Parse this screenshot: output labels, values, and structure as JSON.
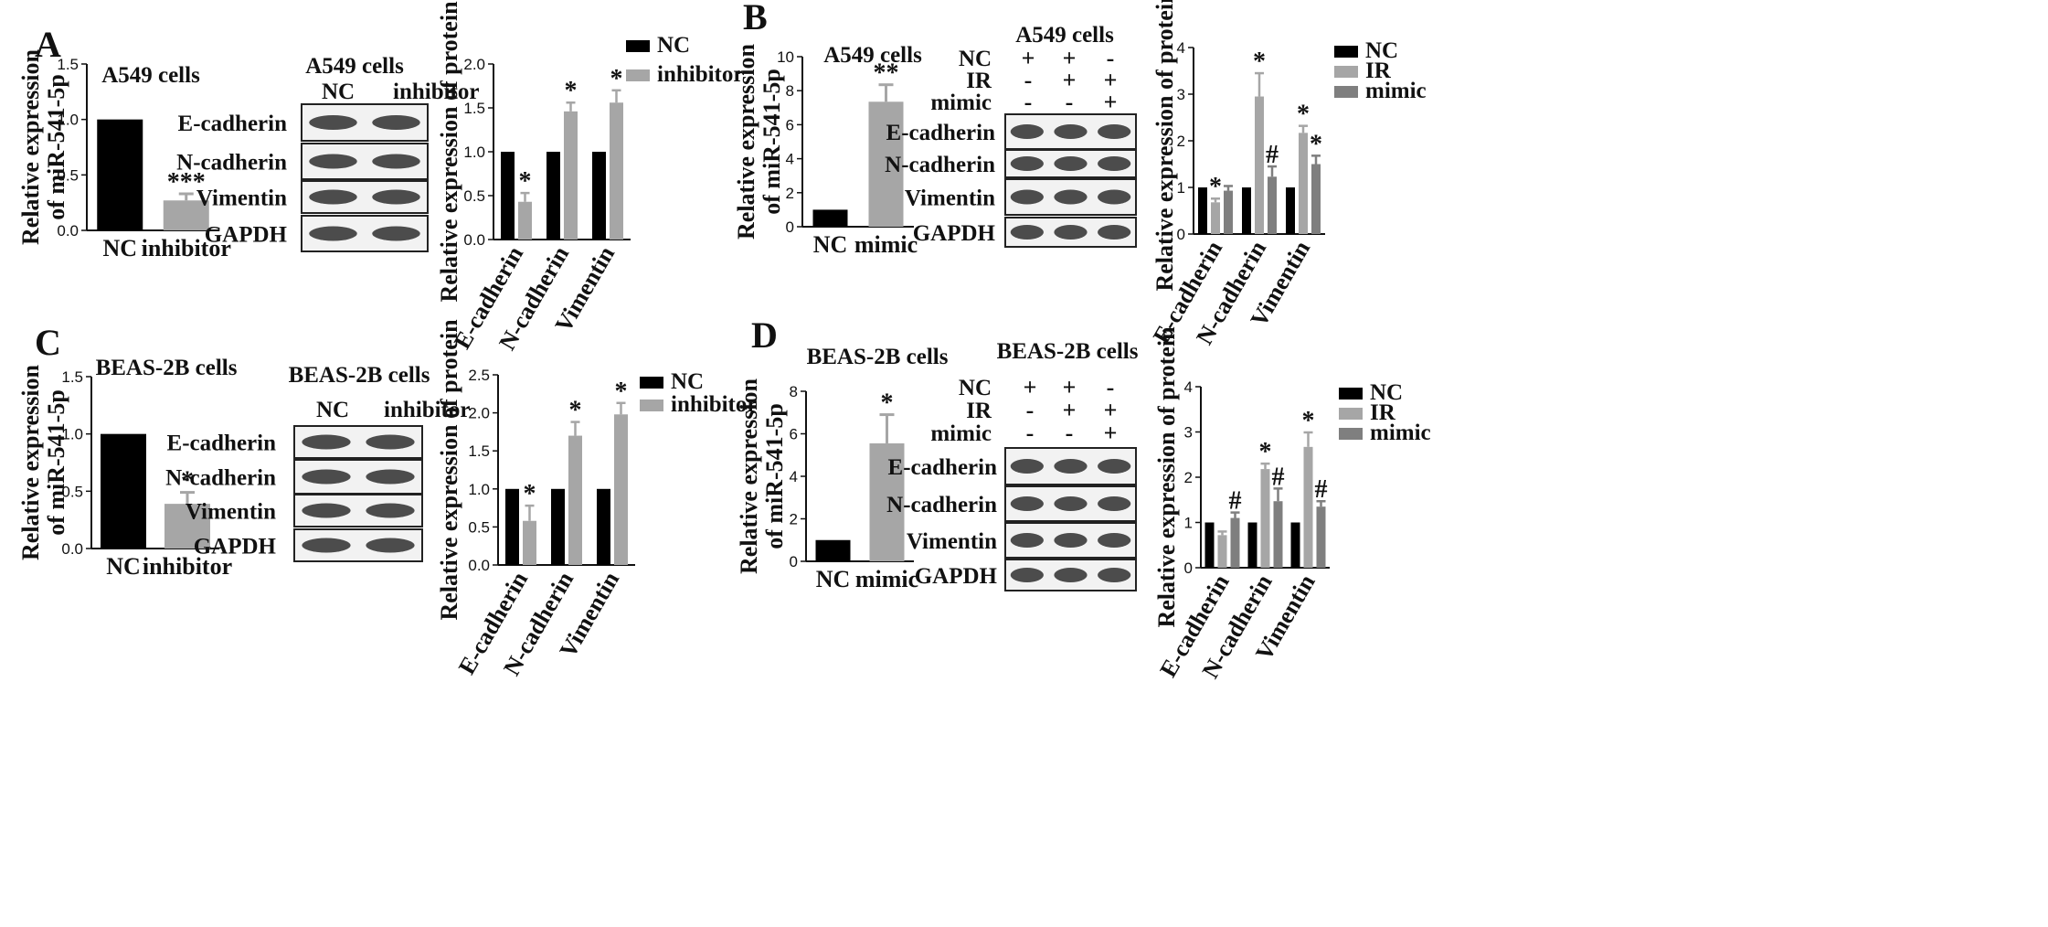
{
  "panels": [
    {
      "letter": "A",
      "mirna": {
        "title": "A549 cells",
        "ylabel": [
          "Relative expression",
          "of miR-541-5p"
        ],
        "categories": [
          "NC",
          "inhibitor"
        ],
        "values": [
          1.0,
          0.27
        ],
        "errors": [
          0,
          0.06
        ],
        "sig": [
          "",
          "***"
        ],
        "ylim": [
          0,
          1.5
        ],
        "ticks": [
          "0.0",
          "0.5",
          "1.0",
          "1.5"
        ]
      },
      "blot": {
        "title": "A549 cells",
        "lane_header_style": "labels",
        "lanes": [
          "NC",
          "inhibitor"
        ],
        "proteins": [
          "E-cadherin",
          "N-cadherin",
          "Vimentin",
          "GAPDH"
        ]
      },
      "protein": {
        "ylabel": "Relative expression of protein",
        "categories": [
          "E-cadherin",
          "N-cadherin",
          "Vimentin"
        ],
        "series": [
          {
            "name": "NC",
            "values": [
              1,
              1,
              1
            ],
            "errors": [
              0,
              0,
              0
            ],
            "sig": [
              "",
              "",
              ""
            ]
          },
          {
            "name": "inhibitor",
            "values": [
              0.43,
              1.46,
              1.56
            ],
            "errors": [
              0.1,
              0.1,
              0.14
            ],
            "sig": [
              "*",
              "*",
              "*"
            ]
          }
        ],
        "ylim": [
          0,
          2.0
        ],
        "ticks": [
          "0.0",
          "0.5",
          "1.0",
          "1.5",
          "2.0"
        ]
      }
    },
    {
      "letter": "B",
      "mirna": {
        "title": "A549 cells",
        "ylabel": [
          "Relative expression",
          "of miR-541-5p"
        ],
        "categories": [
          "NC",
          "mimic"
        ],
        "values": [
          1.0,
          7.35
        ],
        "errors": [
          0,
          1.0
        ],
        "sig": [
          "",
          "**"
        ],
        "ylim": [
          0,
          10
        ],
        "ticks": [
          "0",
          "2",
          "4",
          "6",
          "8",
          "10"
        ]
      },
      "blot": {
        "title": "A549 cells",
        "lane_header_style": "conditions",
        "conditions": [
          {
            "name": "NC",
            "symbols": [
              "+",
              "+",
              "-"
            ]
          },
          {
            "name": "IR",
            "symbols": [
              "-",
              "+",
              "+"
            ]
          },
          {
            "name": "mimic",
            "symbols": [
              "-",
              "-",
              "+"
            ]
          }
        ],
        "proteins": [
          "E-cadherin",
          "N-cadherin",
          "Vimentin",
          "GAPDH"
        ]
      },
      "protein": {
        "ylabel": "Relative expression of protein",
        "categories": [
          "E-cadherin",
          "N-cadherin",
          "Vimentin"
        ],
        "series": [
          {
            "name": "NC",
            "values": [
              1,
              1,
              1
            ],
            "errors": [
              0,
              0,
              0
            ],
            "sig": [
              "",
              "",
              ""
            ]
          },
          {
            "name": "IR",
            "values": [
              0.68,
              2.95,
              2.17
            ],
            "errors": [
              0.08,
              0.5,
              0.15
            ],
            "sig": [
              "*",
              "*",
              "*"
            ]
          },
          {
            "name": "mimic",
            "values": [
              0.93,
              1.23,
              1.5
            ],
            "errors": [
              0.1,
              0.22,
              0.18
            ],
            "sig": [
              "",
              "#",
              "*"
            ]
          }
        ],
        "ylim": [
          0,
          4
        ],
        "ticks": [
          "0",
          "1",
          "2",
          "3",
          "4"
        ]
      }
    },
    {
      "letter": "C",
      "mirna": {
        "title": "BEAS-2B cells",
        "ylabel": [
          "Relative expression",
          "of miR-541-5p"
        ],
        "categories": [
          "NC",
          "inhibitor"
        ],
        "values": [
          1.0,
          0.39
        ],
        "errors": [
          0,
          0.1
        ],
        "sig": [
          "",
          "*"
        ],
        "ylim": [
          0,
          1.5
        ],
        "ticks": [
          "0.0",
          "0.5",
          "1.0",
          "1.5"
        ]
      },
      "blot": {
        "title": "BEAS-2B cells",
        "lane_header_style": "labels",
        "lanes": [
          "NC",
          "inhibitor"
        ],
        "proteins": [
          "E-cadherin",
          "N-cadherin",
          "Vimentin",
          "GAPDH"
        ]
      },
      "protein": {
        "ylabel": "Relative expression of protein",
        "categories": [
          "E-cadherin",
          "N-cadherin",
          "Vimentin"
        ],
        "series": [
          {
            "name": "NC",
            "values": [
              1,
              1,
              1
            ],
            "errors": [
              0,
              0,
              0
            ],
            "sig": [
              "",
              "",
              ""
            ]
          },
          {
            "name": "inhibitor",
            "values": [
              0.58,
              1.7,
              1.98
            ],
            "errors": [
              0.2,
              0.18,
              0.15
            ],
            "sig": [
              "*",
              "*",
              "*"
            ]
          }
        ],
        "ylim": [
          0,
          2.5
        ],
        "ticks": [
          "0.0",
          "0.5",
          "1.0",
          "1.5",
          "2.0",
          "2.5"
        ]
      }
    },
    {
      "letter": "D",
      "mirna": {
        "title": "BEAS-2B cells",
        "ylabel": [
          "Relative expression",
          "of miR-541-5p"
        ],
        "categories": [
          "NC",
          "mimic"
        ],
        "values": [
          1.0,
          5.55
        ],
        "errors": [
          0,
          1.35
        ],
        "sig": [
          "",
          "*"
        ],
        "ylim": [
          0,
          8
        ],
        "ticks": [
          "0",
          "2",
          "4",
          "6",
          "8"
        ]
      },
      "blot": {
        "title": "BEAS-2B cells",
        "lane_header_style": "conditions",
        "conditions": [
          {
            "name": "NC",
            "symbols": [
              "+",
              "+",
              "-"
            ]
          },
          {
            "name": "IR",
            "symbols": [
              "-",
              "+",
              "+"
            ]
          },
          {
            "name": "mimic",
            "symbols": [
              "-",
              "-",
              "+"
            ]
          }
        ],
        "proteins": [
          "E-cadherin",
          "N-cadherin",
          "Vimentin",
          "GAPDH"
        ]
      },
      "protein": {
        "ylabel": "Relative expression of protein",
        "categories": [
          "E-cadherin",
          "N-cadherin",
          "Vimentin"
        ],
        "series": [
          {
            "name": "NC",
            "values": [
              1,
              1,
              1
            ],
            "errors": [
              0,
              0,
              0
            ],
            "sig": [
              "",
              "",
              ""
            ]
          },
          {
            "name": "IR",
            "values": [
              0.72,
              2.18,
              2.67
            ],
            "errors": [
              0.08,
              0.12,
              0.32
            ],
            "sig": [
              "",
              "*",
              "*"
            ]
          },
          {
            "name": "mimic",
            "values": [
              1.1,
              1.47,
              1.35
            ],
            "errors": [
              0.12,
              0.28,
              0.12
            ],
            "sig": [
              "#",
              "#",
              "#"
            ]
          }
        ],
        "ylim": [
          0,
          4
        ],
        "ticks": [
          "0",
          "1",
          "2",
          "3",
          "4"
        ]
      }
    }
  ],
  "colors": {
    "black": "#000000",
    "gray": "#a6a6a6",
    "darkgray": "#7f7f7f"
  },
  "chart_data": [
    {
      "type": "bar",
      "panel": "A",
      "title": "A549 cells",
      "categories": [
        "NC",
        "inhibitor"
      ],
      "values": [
        1.0,
        0.27
      ],
      "ylabel": "Relative expression of miR-541-5p",
      "ylim": [
        0,
        1.5
      ]
    },
    {
      "type": "bar",
      "panel": "A",
      "categories": [
        "E-cadherin",
        "N-cadherin",
        "Vimentin"
      ],
      "series": [
        {
          "name": "NC",
          "values": [
            1,
            1,
            1
          ]
        },
        {
          "name": "inhibitor",
          "values": [
            0.43,
            1.46,
            1.56
          ]
        }
      ],
      "ylabel": "Relative expression of protein",
      "ylim": [
        0,
        2.0
      ],
      "legend": "top-right"
    },
    {
      "type": "bar",
      "panel": "B",
      "title": "A549 cells",
      "categories": [
        "NC",
        "mimic"
      ],
      "values": [
        1.0,
        7.35
      ],
      "ylabel": "Relative expression of miR-541-5p",
      "ylim": [
        0,
        10
      ]
    },
    {
      "type": "bar",
      "panel": "B",
      "categories": [
        "E-cadherin",
        "N-cadherin",
        "Vimentin"
      ],
      "series": [
        {
          "name": "NC",
          "values": [
            1,
            1,
            1
          ]
        },
        {
          "name": "IR",
          "values": [
            0.68,
            2.95,
            2.17
          ]
        },
        {
          "name": "mimic",
          "values": [
            0.93,
            1.23,
            1.5
          ]
        }
      ],
      "ylabel": "Relative expression of protein",
      "ylim": [
        0,
        4
      ],
      "legend": "top-right"
    },
    {
      "type": "bar",
      "panel": "C",
      "title": "BEAS-2B cells",
      "categories": [
        "NC",
        "inhibitor"
      ],
      "values": [
        1.0,
        0.39
      ],
      "ylabel": "Relative expression of miR-541-5p",
      "ylim": [
        0,
        1.5
      ]
    },
    {
      "type": "bar",
      "panel": "C",
      "categories": [
        "E-cadherin",
        "N-cadherin",
        "Vimentin"
      ],
      "series": [
        {
          "name": "NC",
          "values": [
            1,
            1,
            1
          ]
        },
        {
          "name": "inhibitor",
          "values": [
            0.58,
            1.7,
            1.98
          ]
        }
      ],
      "ylabel": "Relative expression of protein",
      "ylim": [
        0,
        2.5
      ],
      "legend": "top-right"
    },
    {
      "type": "bar",
      "panel": "D",
      "title": "BEAS-2B cells",
      "categories": [
        "NC",
        "mimic"
      ],
      "values": [
        1.0,
        5.55
      ],
      "ylabel": "Relative expression of miR-541-5p",
      "ylim": [
        0,
        8
      ]
    },
    {
      "type": "bar",
      "panel": "D",
      "categories": [
        "E-cadherin",
        "N-cadherin",
        "Vimentin"
      ],
      "series": [
        {
          "name": "NC",
          "values": [
            1,
            1,
            1
          ]
        },
        {
          "name": "IR",
          "values": [
            0.72,
            2.18,
            2.67
          ]
        },
        {
          "name": "mimic",
          "values": [
            1.1,
            1.47,
            1.35
          ]
        }
      ],
      "ylabel": "Relative expression of protein",
      "ylim": [
        0,
        4
      ],
      "legend": "top-right"
    }
  ]
}
